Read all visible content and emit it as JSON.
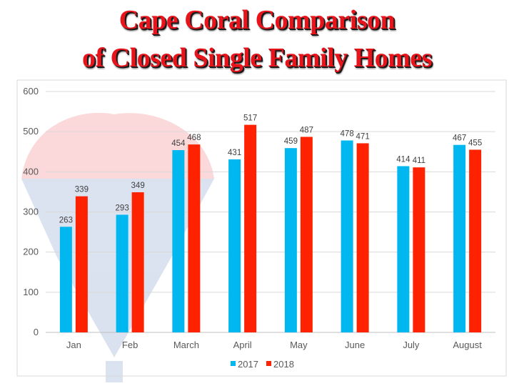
{
  "title_line1": "Cape Coral Comparison",
  "title_line2": "of Closed Single Family Homes",
  "chart_data": {
    "type": "bar",
    "categories": [
      "Jan",
      "Feb",
      "March",
      "April",
      "May",
      "June",
      "July",
      "August"
    ],
    "series": [
      {
        "name": "2017",
        "values": [
          263,
          293,
          454,
          431,
          459,
          478,
          414,
          467
        ],
        "color": "#00b7ef"
      },
      {
        "name": "2018",
        "values": [
          339,
          349,
          468,
          517,
          487,
          471,
          411,
          455
        ],
        "color": "#ff2200"
      }
    ],
    "ylim": [
      0,
      600
    ],
    "yticks": [
      0,
      100,
      200,
      300,
      400,
      500,
      600
    ],
    "grid": true,
    "legend": "bottom",
    "data_labels": true
  }
}
